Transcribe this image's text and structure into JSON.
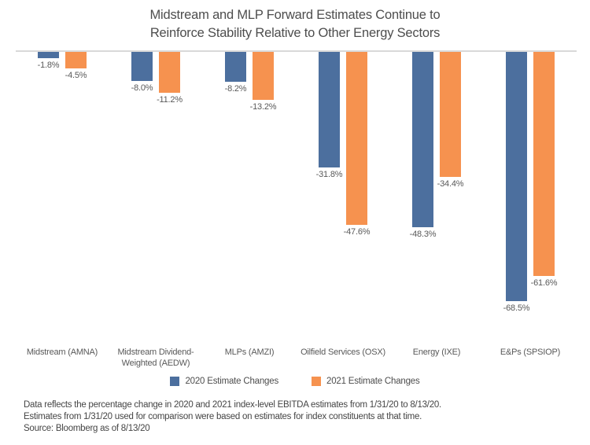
{
  "title": {
    "line1": "Midstream and MLP Forward Estimates Continue to",
    "line2": "Reinforce Stability Relative to Other Energy Sectors"
  },
  "colors": {
    "series_2020": "#4c6f9e",
    "series_2021": "#f6924f",
    "axis_line": "#d9d9d9",
    "title_text": "#4d4d4d",
    "label_text": "#595959"
  },
  "chart_data": {
    "type": "bar",
    "title": "Midstream and MLP Forward Estimates Continue to Reinforce Stability Relative to Other Energy Sectors",
    "categories": [
      "Midstream (AMNA)",
      "Midstream Dividend-\nWeighted (AEDW)",
      "MLPs (AMZI)",
      "Oilfield Services (OSX)",
      "Energy (IXE)",
      "E&Ps (SPSIOP)"
    ],
    "series": [
      {
        "name": "2020 Estimate Changes",
        "color": "#4c6f9e",
        "values": [
          -1.8,
          -8.0,
          -8.2,
          -31.8,
          -48.3,
          -68.5
        ],
        "labels": [
          "-1.8%",
          "-8.0%",
          "-8.2%",
          "-31.8%",
          "-48.3%",
          "-68.5%"
        ]
      },
      {
        "name": "2021 Estimate Changes",
        "color": "#f6924f",
        "values": [
          -4.5,
          -11.2,
          -13.2,
          -47.6,
          -34.4,
          -61.6
        ],
        "labels": [
          "-4.5%",
          "-11.2%",
          "-13.2%",
          "-47.6%",
          "-34.4%",
          "-61.6%"
        ]
      }
    ],
    "xlabel": "",
    "ylabel": "",
    "ylim": [
      -80,
      0
    ],
    "grid": false,
    "legend_position": "bottom",
    "value_labels_shown": true
  },
  "legend": {
    "items": [
      {
        "label": "2020 Estimate Changes",
        "color": "#4c6f9e"
      },
      {
        "label": "2021 Estimate Changes",
        "color": "#f6924f"
      }
    ]
  },
  "footnote": {
    "line1": "Data reflects the percentage change in 2020 and 2021 index-level EBITDA estimates from 1/31/20 to 8/13/20.",
    "line2": "Estimates from 1/31/20 used for comparison were based on estimates for index constituents at that time.",
    "line3": "Source: Bloomberg as of 8/13/20"
  }
}
